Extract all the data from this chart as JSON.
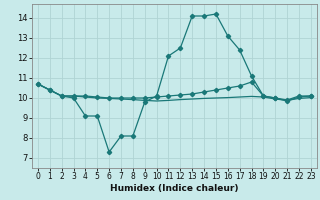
{
  "title": "",
  "xlabel": "Humidex (Indice chaleur)",
  "background_color": "#c8eaea",
  "grid_color": "#b0d4d4",
  "line_color": "#1a7878",
  "xlim": [
    -0.5,
    23.5
  ],
  "ylim": [
    6.5,
    14.7
  ],
  "xticks": [
    0,
    1,
    2,
    3,
    4,
    5,
    6,
    7,
    8,
    9,
    10,
    11,
    12,
    13,
    14,
    15,
    16,
    17,
    18,
    19,
    20,
    21,
    22,
    23
  ],
  "yticks": [
    7,
    8,
    9,
    10,
    11,
    12,
    13,
    14
  ],
  "x_indices": [
    0,
    1,
    2,
    3,
    4,
    5,
    6,
    7,
    8,
    9,
    10,
    11,
    12,
    13,
    14,
    15,
    16,
    17,
    18,
    19,
    20,
    21,
    22,
    23
  ],
  "line1_y": [
    10.7,
    10.4,
    10.1,
    10.0,
    9.1,
    9.1,
    7.3,
    8.1,
    8.1,
    9.8,
    10.1,
    12.1,
    12.5,
    14.1,
    14.1,
    14.2,
    13.1,
    12.4,
    11.1,
    10.1,
    10.0,
    9.9,
    10.1,
    10.1
  ],
  "line2_y": [
    10.7,
    10.4,
    10.1,
    10.1,
    10.1,
    10.05,
    10.0,
    10.0,
    10.0,
    10.0,
    10.05,
    10.1,
    10.15,
    10.2,
    10.3,
    10.4,
    10.5,
    10.6,
    10.8,
    10.1,
    10.0,
    9.85,
    10.05,
    10.1
  ],
  "line3_y": [
    10.7,
    10.4,
    10.1,
    10.1,
    10.05,
    10.0,
    9.98,
    9.95,
    9.92,
    9.88,
    9.85,
    9.88,
    9.92,
    9.95,
    9.98,
    10.0,
    10.02,
    10.05,
    10.08,
    10.05,
    9.95,
    9.88,
    9.98,
    10.02
  ]
}
